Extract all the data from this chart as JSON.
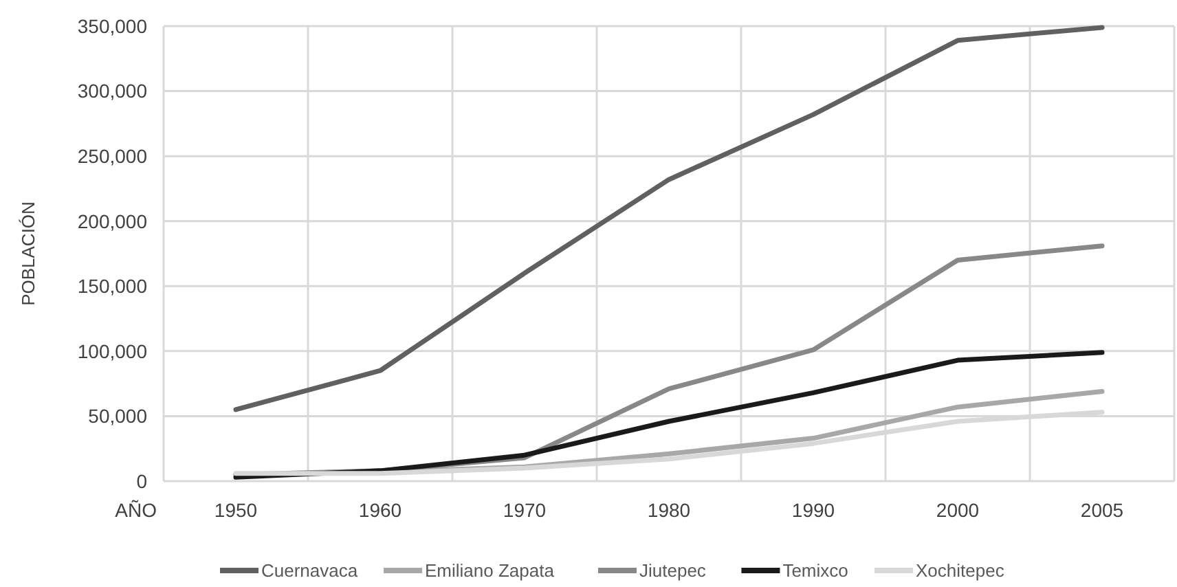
{
  "chart_data": {
    "type": "line",
    "xlabel": "AÑO",
    "ylabel": "POBLACIÓN",
    "categories": [
      "1950",
      "1960",
      "1970",
      "1980",
      "1990",
      "2000",
      "2005"
    ],
    "series": [
      {
        "name": "Cuernavaca",
        "color": "#606060",
        "values": [
          55000,
          85000,
          160000,
          232000,
          282000,
          339000,
          349000
        ]
      },
      {
        "name": "Emiliano Zapata",
        "color": "#a8a8a8",
        "values": [
          5000,
          7000,
          11000,
          21000,
          33000,
          57000,
          69000
        ]
      },
      {
        "name": "Jiutepec",
        "color": "#888888",
        "values": [
          5000,
          8000,
          18000,
          71000,
          101000,
          170000,
          181000
        ]
      },
      {
        "name": "Temixco",
        "color": "#1a1a1a",
        "values": [
          3000,
          8000,
          20000,
          46000,
          68000,
          93000,
          99000
        ]
      },
      {
        "name": "Xochitepec",
        "color": "#d8d8d8",
        "values": [
          6000,
          6000,
          10000,
          17000,
          29000,
          46000,
          53000
        ]
      }
    ],
    "ylim": [
      0,
      350000
    ],
    "yticks": [
      {
        "value": 0,
        "label": "0"
      },
      {
        "value": 50000,
        "label": "50,000"
      },
      {
        "value": 100000,
        "label": "100,000"
      },
      {
        "value": 150000,
        "label": "150,000"
      },
      {
        "value": 200000,
        "label": "200,000"
      },
      {
        "value": 250000,
        "label": "250,000"
      },
      {
        "value": 300000,
        "label": "300,000"
      },
      {
        "value": 350000,
        "label": "350,000"
      }
    ],
    "grid": true,
    "legend": "bottom"
  }
}
